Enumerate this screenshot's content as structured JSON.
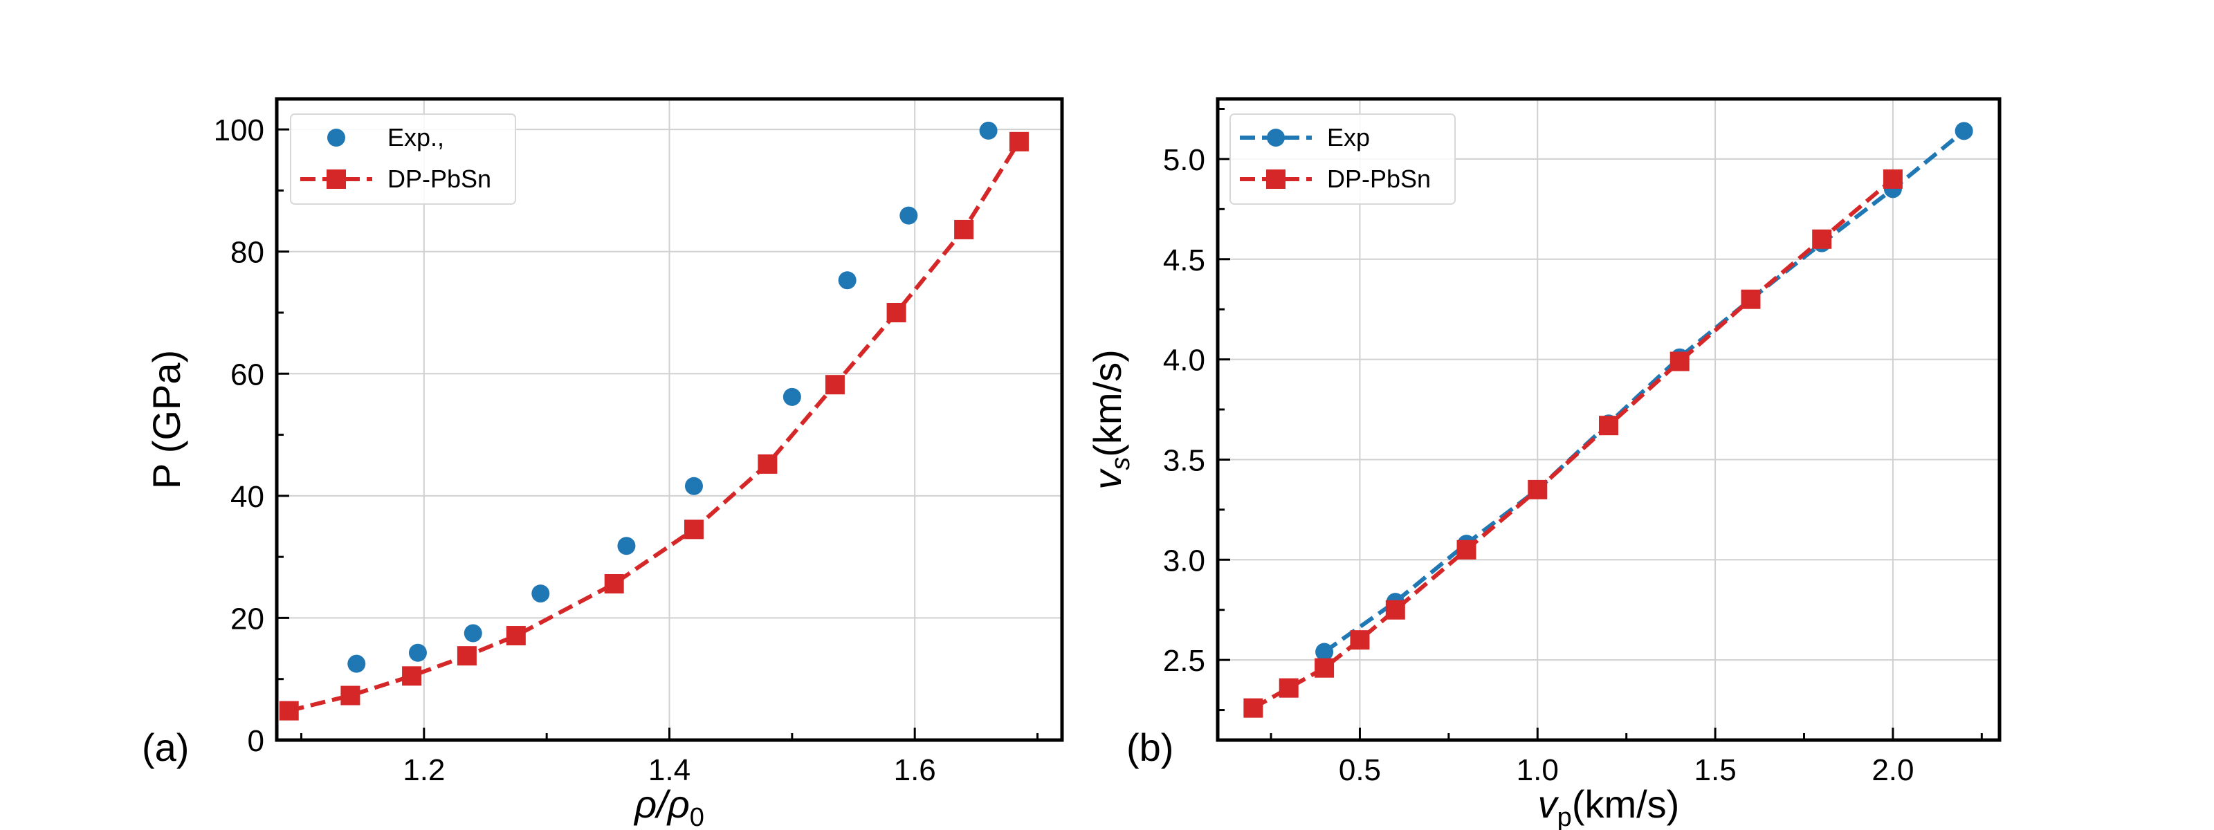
{
  "chart_data": [
    {
      "type": "scatter+line",
      "panel_label": "(a)",
      "xlabel": "ρ/ρ",
      "xlabel_sub": "0",
      "ylabel": "P (GPa)",
      "xlim": [
        1.08,
        1.72
      ],
      "ylim": [
        0,
        105
      ],
      "xticks": [
        1.2,
        1.4,
        1.6
      ],
      "xtick_labels": [
        "1.2",
        "1.4",
        "1.6"
      ],
      "yticks": [
        0,
        20,
        40,
        60,
        80,
        100
      ],
      "ytick_labels": [
        "0",
        "20",
        "40",
        "60",
        "80",
        "100"
      ],
      "grid": true,
      "legend_position": "upper-left",
      "series": [
        {
          "name": "Exp.,",
          "style": "markers",
          "marker": "circle",
          "color": "#1f77b4",
          "x": [
            1.145,
            1.195,
            1.24,
            1.295,
            1.365,
            1.42,
            1.5,
            1.545,
            1.595,
            1.66
          ],
          "y": [
            12.5,
            14.3,
            17.5,
            24.0,
            31.8,
            41.6,
            56.2,
            75.3,
            85.9,
            99.8
          ]
        },
        {
          "name": "DP-PbSn",
          "style": "dashed-line-markers",
          "marker": "square",
          "color": "#d62728",
          "x": [
            1.09,
            1.14,
            1.19,
            1.235,
            1.275,
            1.355,
            1.42,
            1.48,
            1.535,
            1.585,
            1.64,
            1.685
          ],
          "y": [
            4.8,
            7.3,
            10.5,
            13.8,
            17.1,
            25.6,
            34.5,
            45.2,
            58.2,
            70.0,
            83.6,
            98.0
          ]
        }
      ]
    },
    {
      "type": "scatter+line",
      "panel_label": "(b)",
      "xlabel": "v",
      "xlabel_sub": "p",
      "xlabel_rest": "(km/s)",
      "ylabel": "v",
      "ylabel_sub": "s",
      "ylabel_rest": "(km/s)",
      "xlim": [
        0.1,
        2.3
      ],
      "ylim": [
        2.1,
        5.3
      ],
      "xticks": [
        0.5,
        1.0,
        1.5,
        2.0
      ],
      "xtick_labels": [
        "0.5",
        "1.0",
        "1.5",
        "2.0"
      ],
      "yticks": [
        2.5,
        3.0,
        3.5,
        4.0,
        4.5,
        5.0
      ],
      "ytick_labels": [
        "2.5",
        "3.0",
        "3.5",
        "4.0",
        "4.5",
        "5.0"
      ],
      "grid": true,
      "legend_position": "upper-left",
      "series": [
        {
          "name": "Exp",
          "style": "dashed-line-markers",
          "marker": "circle",
          "color": "#1f77b4",
          "x": [
            0.4,
            0.6,
            0.8,
            1.0,
            1.2,
            1.4,
            1.6,
            1.8,
            2.0,
            2.2
          ],
          "y": [
            2.54,
            2.79,
            3.08,
            3.35,
            3.68,
            4.01,
            4.3,
            4.58,
            4.85,
            5.14
          ]
        },
        {
          "name": "DP-PbSn",
          "style": "dashed-line-markers",
          "marker": "square",
          "color": "#d62728",
          "x": [
            0.2,
            0.3,
            0.4,
            0.5,
            0.6,
            0.8,
            1.0,
            1.2,
            1.4,
            1.6,
            1.8,
            2.0
          ],
          "y": [
            2.26,
            2.36,
            2.46,
            2.6,
            2.75,
            3.05,
            3.35,
            3.67,
            3.99,
            4.3,
            4.6,
            4.9
          ]
        }
      ]
    }
  ]
}
